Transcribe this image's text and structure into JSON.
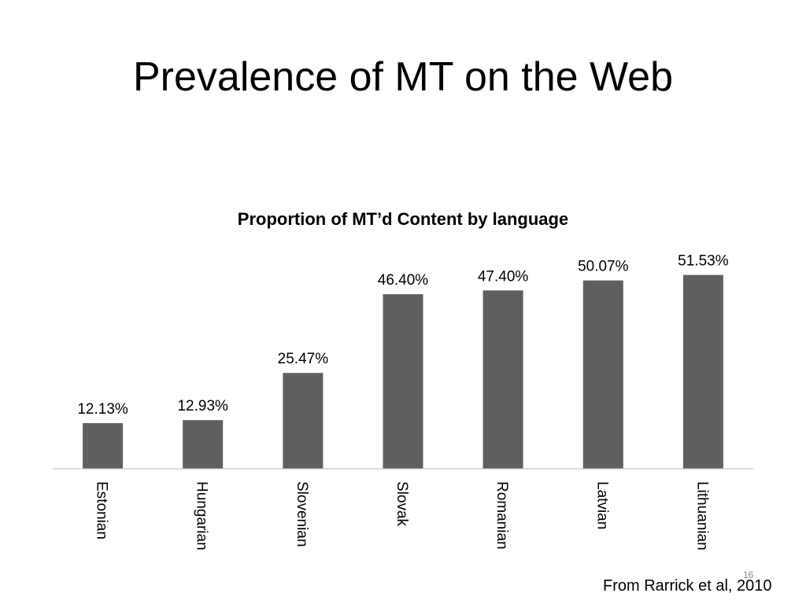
{
  "slide": {
    "title": "Prevalence of MT on the Web",
    "page_number": "16",
    "source": "From Rarrick et al, 2010"
  },
  "colors": {
    "bar": "#5f5f5f",
    "axis": "#bfbfbf",
    "text": "#000000"
  },
  "chart_data": {
    "type": "bar",
    "title": "Proportion of MT’d Content by language",
    "xlabel": "",
    "ylabel": "",
    "categories": [
      "Estonian",
      "Hungarian",
      "Slovenian",
      "Slovak",
      "Romanian",
      "Latvian",
      "Lithuanian"
    ],
    "values": [
      12.13,
      12.93,
      25.47,
      46.4,
      47.4,
      50.07,
      51.53
    ],
    "data_labels": [
      "12.13%",
      "12.93%",
      "25.47%",
      "46.40%",
      "47.40%",
      "50.07%",
      "51.53%"
    ],
    "ylim": [
      0,
      55
    ],
    "grid": false,
    "legend": "none",
    "category_label_orientation": "vertical"
  }
}
